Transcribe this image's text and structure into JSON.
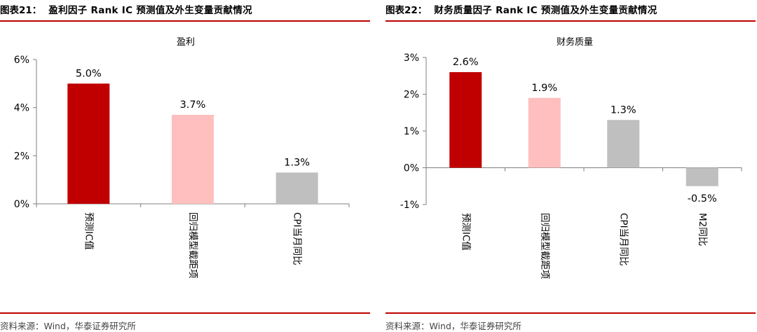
{
  "figures": [
    {
      "fig_no": "图表21：",
      "fig_title": "盈利因子 Rank IC 预测值及外生变量贡献情况",
      "source": "资料来源：Wind，华泰证券研究所"
    },
    {
      "fig_no": "图表22：",
      "fig_title": "财务质量因子 Rank IC 预测值及外生变量贡献情况",
      "source": "资料来源：Wind，华泰证券研究所"
    }
  ],
  "chart_data": [
    {
      "type": "bar",
      "title": "盈利",
      "categories": [
        "预测IC值",
        "回归模型截距项",
        "CPI当月同比"
      ],
      "values": [
        5.0,
        3.7,
        1.3
      ],
      "value_labels": [
        "5.0%",
        "3.7%",
        "1.3%"
      ],
      "colors": [
        "#c00000",
        "#ffbfbf",
        "#bfbfbf"
      ],
      "ylim": [
        0,
        6
      ],
      "yticks": [
        0,
        2,
        4,
        6
      ],
      "ytick_labels": [
        "0%",
        "2%",
        "4%",
        "6%"
      ],
      "xlabel": "",
      "ylabel": "",
      "grid": false
    },
    {
      "type": "bar",
      "title": "财务质量",
      "categories": [
        "预测IC值",
        "回归模型截距项",
        "CPI当月同比",
        "M2同比"
      ],
      "values": [
        2.6,
        1.9,
        1.3,
        -0.5
      ],
      "value_labels": [
        "2.6%",
        "1.9%",
        "1.3%",
        "-0.5%"
      ],
      "colors": [
        "#c00000",
        "#ffbfbf",
        "#bfbfbf",
        "#bfbfbf"
      ],
      "ylim": [
        -1,
        3
      ],
      "yticks": [
        -1,
        0,
        1,
        2,
        3
      ],
      "ytick_labels": [
        "-1%",
        "0%",
        "1%",
        "2%",
        "3%"
      ],
      "xlabel": "",
      "ylabel": "",
      "grid": false
    }
  ]
}
